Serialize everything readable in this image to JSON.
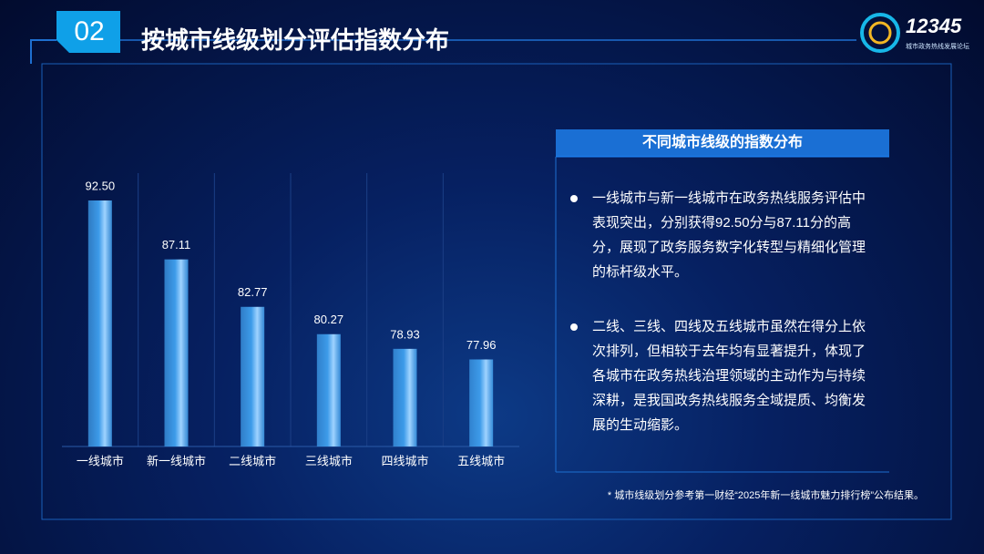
{
  "header": {
    "number": "02",
    "title": "按城市线级划分评估指数分布"
  },
  "logo": {
    "text": "12345",
    "subtitle": "城市政务热线发展论坛"
  },
  "chart_data": {
    "type": "bar",
    "categories": [
      "一线城市",
      "新一线城市",
      "二线城市",
      "三线城市",
      "四线城市",
      "五线城市"
    ],
    "values": [
      92.5,
      87.11,
      82.77,
      80.27,
      78.93,
      77.96
    ],
    "value_labels": [
      "92.50",
      "87.11",
      "82.77",
      "80.27",
      "78.93",
      "77.96"
    ],
    "color": "#3d9be9",
    "ylim": [
      70,
      95
    ]
  },
  "panel": {
    "title": "不同城市线级的指数分布",
    "bullets": [
      "一线城市与新一线城市在政务热线服务评估中表现突出，分别获得92.50分与87.11分的高分，展现了政务服务数字化转型与精细化管理的标杆级水平。",
      "二线、三线、四线及五线城市虽然在得分上依次排列，但相较于去年均有显著提升，体现了各城市在政务热线治理领域的主动作为与持续深耕，是我国政务热线服务全域提质、均衡发展的生动缩影。"
    ]
  },
  "footnote": "*  城市线级划分参考第一财经“2025年新一线城市魅力排行榜”公布结果。"
}
